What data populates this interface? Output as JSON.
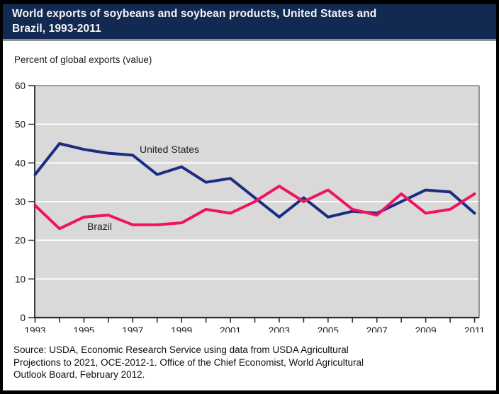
{
  "header": {
    "title_lines": [
      "World exports of soybeans and soybean products, United States and",
      "Brazil, 1993-2011"
    ]
  },
  "chart_data": {
    "type": "line",
    "title": "World exports of soybeans and soybean products, United States and Brazil, 1993-2011",
    "ylabel": "Percent of global exports (value)",
    "xlabel": "",
    "ylim": [
      0,
      60
    ],
    "ytick_step": 10,
    "grid": "horizontal white gridlines on light gray plot",
    "plot_bg": "#d9d9d9",
    "gridline_color": "#ffffff",
    "legend": "inline labels next to lines",
    "x": [
      1993,
      1994,
      1995,
      1996,
      1997,
      1998,
      1999,
      2000,
      2001,
      2002,
      2003,
      2004,
      2005,
      2006,
      2007,
      2008,
      2009,
      2010,
      2011
    ],
    "xtick_labels": [
      "1993",
      "1995",
      "1997",
      "1999",
      "2001",
      "2003",
      "2005",
      "2007",
      "2009",
      "2011"
    ],
    "series": [
      {
        "name": "United States",
        "color": "#1b2c83",
        "values": [
          37,
          45,
          43.5,
          42.5,
          42,
          37,
          39,
          35,
          36,
          31,
          26,
          31,
          26,
          27.5,
          27,
          30,
          33,
          32.5,
          27
        ]
      },
      {
        "name": "Brazil",
        "color": "#f0135e",
        "values": [
          29,
          23,
          26,
          26.5,
          24,
          24,
          24.5,
          28,
          27,
          30,
          34,
          30,
          33,
          28,
          26.5,
          32,
          27,
          28,
          32
        ]
      }
    ]
  },
  "source": {
    "lines": [
      "Source: USDA, Economic Research Service using data from USDA Agricultural",
      "Projections to 2021, OCE-2012-1. Office of the Chief Economist, World Agricultural",
      "Outlook Board, February 2012."
    ]
  }
}
